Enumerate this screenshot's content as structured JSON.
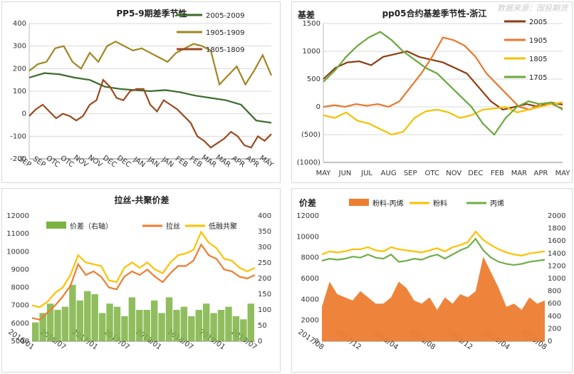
{
  "watermark": "数据来源：国投期货",
  "chart_data": [
    {
      "type": "line",
      "title": "PP5-9期差季节性",
      "x_ticks": [
        "SEP",
        "SEP",
        "OTC",
        "OTC",
        "NOV",
        "NOV",
        "DEC",
        "DEC",
        "JAN",
        "JAN",
        "JAN",
        "FEB",
        "FEB",
        "MAR",
        "MAR",
        "APR",
        "APR",
        "MAY"
      ],
      "ylim": [
        -200,
        400
      ],
      "y_ticks": [
        -200,
        -100,
        0,
        100,
        200,
        300,
        400
      ],
      "grid": true,
      "legend": "top-right",
      "series": [
        {
          "name": "2005-2009",
          "color": "#3b6b2c",
          "values": [
            160,
            180,
            175,
            160,
            150,
            120,
            110,
            105,
            100,
            105,
            95,
            80,
            70,
            60,
            40,
            -30,
            -40
          ]
        },
        {
          "name": "1905-1909",
          "color": "#a08523",
          "values": [
            190,
            220,
            230,
            290,
            300,
            230,
            200,
            270,
            230,
            300,
            320,
            300,
            280,
            290,
            270,
            250,
            230,
            270,
            290,
            310,
            300,
            280,
            130,
            170,
            210,
            130,
            190,
            260,
            170
          ]
        },
        {
          "name": "1805-1809",
          "color": "#9b4a1f",
          "values": [
            -10,
            20,
            40,
            10,
            -20,
            0,
            -10,
            -30,
            -10,
            40,
            60,
            150,
            120,
            70,
            60,
            100,
            110,
            110,
            40,
            10,
            60,
            40,
            20,
            -10,
            -40,
            -100,
            -120,
            -150,
            -130,
            -110,
            -80,
            -100,
            -140,
            -150,
            -100,
            -120,
            -90
          ]
        }
      ]
    },
    {
      "type": "line",
      "title": "pp05合约基差季节性-浙江",
      "ylabel": "基差",
      "x_ticks": [
        "MAY",
        "JUN",
        "JUL",
        "AUG",
        "SEP",
        "OTC",
        "NOV",
        "DEC",
        "FEB",
        "MAR",
        "APR",
        "MAY"
      ],
      "ylim": [
        -1000,
        1500
      ],
      "y_ticks": [
        "(1000)",
        "(500)",
        "0",
        "500",
        "1000",
        "1500"
      ],
      "grid": true,
      "legend": "right",
      "series": [
        {
          "name": "2005",
          "color": "#8b3e12",
          "values": [
            500,
            700,
            800,
            820,
            750,
            900,
            950,
            1000,
            900,
            850,
            800,
            700,
            600,
            350,
            100,
            -50,
            0,
            50,
            0,
            80,
            40
          ]
        },
        {
          "name": "1905",
          "color": "#e8772e",
          "values": [
            0,
            30,
            0,
            50,
            20,
            50,
            0,
            100,
            350,
            600,
            900,
            1250,
            1200,
            1100,
            900,
            600,
            400,
            200,
            0,
            -50,
            60,
            50,
            -30
          ]
        },
        {
          "name": "1805",
          "color": "#f2c200",
          "values": [
            -150,
            -200,
            -100,
            -250,
            -300,
            -400,
            -500,
            -450,
            -200,
            -80,
            -50,
            -100,
            -200,
            -150,
            -50,
            -30,
            0,
            -100,
            -50,
            0,
            50,
            80
          ]
        },
        {
          "name": "1705",
          "color": "#6ba83d",
          "values": [
            450,
            650,
            900,
            1100,
            1250,
            1350,
            1200,
            1000,
            850,
            700,
            600,
            400,
            200,
            0,
            -300,
            -500,
            -200,
            0,
            100,
            50,
            80,
            -50
          ]
        }
      ]
    },
    {
      "type": "line",
      "title": "拉丝-共聚价差",
      "x_ticks": [
        "2016/01",
        "2016/07",
        "2017/01",
        "2017/07",
        "2018/01",
        "2018/07",
        "2019/01",
        "2019/07"
      ],
      "ylim": [
        5000,
        12000
      ],
      "y_ticks": [
        5000,
        6000,
        7000,
        8000,
        9000,
        10000,
        11000,
        12000
      ],
      "y2lim": [
        0,
        400
      ],
      "y2_ticks": [
        0,
        50,
        100,
        150,
        200,
        250,
        300,
        350,
        400
      ],
      "grid": false,
      "legend": "top",
      "series": [
        {
          "name": "价差（右轴）",
          "color": "#7cb342",
          "kind": "bar-area",
          "axis": "right",
          "values": [
            60,
            90,
            120,
            100,
            110,
            180,
            130,
            160,
            150,
            90,
            120,
            110,
            80,
            140,
            100,
            100,
            130,
            90,
            140,
            100,
            110,
            80,
            100,
            120,
            90,
            100,
            110,
            80,
            70,
            120
          ]
        },
        {
          "name": "拉丝",
          "color": "#ed7d31",
          "axis": "left",
          "values": [
            6300,
            6200,
            6600,
            7000,
            7500,
            8100,
            9300,
            8700,
            8900,
            8600,
            8000,
            7900,
            8600,
            8900,
            8700,
            9000,
            8600,
            8300,
            8800,
            9200,
            9200,
            9500,
            10400,
            9800,
            9600,
            9000,
            8900,
            8600,
            8500,
            8700
          ]
        },
        {
          "name": "低融共聚",
          "color": "#ffc000",
          "axis": "left",
          "values": [
            7000,
            6900,
            7200,
            7700,
            8000,
            8700,
            9800,
            9400,
            9300,
            9200,
            8400,
            8300,
            9100,
            9400,
            9100,
            9400,
            9000,
            8800,
            9400,
            9800,
            9900,
            10100,
            11100,
            10500,
            10200,
            9600,
            9500,
            9100,
            8900,
            9100
          ]
        }
      ]
    },
    {
      "type": "line",
      "ylabel": "价差",
      "x_ticks": [
        "2017/08",
        "2017/12",
        "2018/04",
        "2018/08",
        "2018/12",
        "2019/04",
        "2019/08"
      ],
      "ylim": [
        0,
        12000
      ],
      "y_ticks": [
        0,
        2000,
        4000,
        6000,
        8000,
        10000,
        12000
      ],
      "y2lim": [
        0,
        2000
      ],
      "y2_ticks": [
        0,
        200,
        400,
        600,
        800,
        1000,
        1200,
        1400,
        1600,
        1800,
        2000
      ],
      "grid": false,
      "legend": "top",
      "series": [
        {
          "name": "粉料-丙烯",
          "color": "#ed7d31",
          "kind": "area",
          "axis": "right",
          "values": [
            550,
            950,
            750,
            700,
            650,
            800,
            700,
            600,
            600,
            700,
            950,
            850,
            650,
            600,
            700,
            500,
            700,
            600,
            750,
            700,
            800,
            1350,
            1100,
            850,
            550,
            600,
            500,
            700,
            600,
            650
          ]
        },
        {
          "name": "粉料",
          "color": "#ffc000",
          "axis": "left",
          "values": [
            8300,
            8600,
            8500,
            8600,
            8800,
            8800,
            9000,
            8700,
            8600,
            9000,
            8800,
            8700,
            8600,
            8500,
            8700,
            8900,
            8600,
            9000,
            9200,
            9500,
            10500,
            9700,
            9200,
            8800,
            8500,
            8300,
            8200,
            8400,
            8500,
            8600
          ]
        },
        {
          "name": "丙烯",
          "color": "#70ad47",
          "axis": "left",
          "values": [
            7700,
            7900,
            7800,
            7900,
            8100,
            8000,
            8300,
            8000,
            7900,
            8300,
            7600,
            7700,
            7900,
            7800,
            8100,
            8300,
            7900,
            8300,
            8700,
            9000,
            9800,
            8700,
            8000,
            7600,
            7400,
            7300,
            7400,
            7600,
            7700,
            7800
          ]
        }
      ]
    }
  ]
}
